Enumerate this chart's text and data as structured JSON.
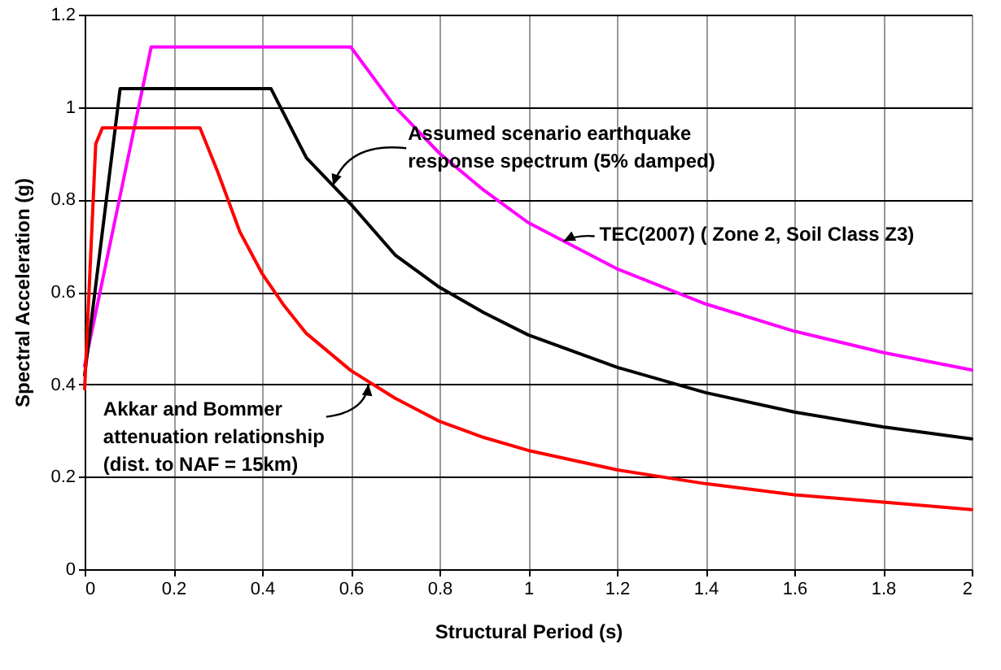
{
  "chart_data": {
    "type": "line",
    "xlabel": "Structural Period (s)",
    "ylabel": "Spectral Acceleration (g)",
    "xlim": [
      0,
      2
    ],
    "xticks": [
      0,
      0.2,
      0.4,
      0.6,
      0.8,
      1,
      1.2,
      1.4,
      1.6,
      1.8,
      2
    ],
    "ylim": [
      0,
      1.2
    ],
    "yticks": [
      0,
      0.2,
      0.4,
      0.6,
      0.8,
      1,
      1.2
    ],
    "grid": true,
    "marker": "none",
    "line_style": "solid",
    "series": [
      {
        "color": "#ff00ff",
        "x": [
          0,
          0.15,
          0.6,
          0.7,
          0.8,
          0.9,
          1.0,
          1.2,
          1.4,
          1.6,
          1.8,
          2.0
        ],
        "values": [
          0.44,
          1.13,
          1.13,
          1.0,
          0.9,
          0.82,
          0.75,
          0.65,
          0.574,
          0.515,
          0.469,
          0.431
        ]
      },
      {
        "color": "#000000",
        "x": [
          0,
          0.08,
          0.42,
          0.5,
          0.6,
          0.7,
          0.8,
          0.9,
          1.0,
          1.2,
          1.4,
          1.6,
          1.8,
          2.0
        ],
        "values": [
          0.42,
          1.04,
          1.04,
          0.89,
          0.79,
          0.68,
          0.61,
          0.555,
          0.507,
          0.437,
          0.382,
          0.34,
          0.308,
          0.282
        ]
      },
      {
        "color": "#ff0000",
        "x": [
          0,
          0.025,
          0.04,
          0.26,
          0.3,
          0.35,
          0.4,
          0.45,
          0.5,
          0.6,
          0.7,
          0.8,
          0.9,
          1.0,
          1.2,
          1.4,
          1.6,
          1.8,
          2.0
        ],
        "values": [
          0.39,
          0.92,
          0.955,
          0.955,
          0.86,
          0.73,
          0.64,
          0.57,
          0.51,
          0.43,
          0.37,
          0.32,
          0.285,
          0.257,
          0.215,
          0.185,
          0.161,
          0.145,
          0.129
        ]
      }
    ],
    "annotations": [
      {
        "text": "Assumed scenario earthquake\nresponse spectrum (5% damped)",
        "x": 0.56,
        "y": 0.83
      },
      {
        "text": "TEC(2007) ( Zone 2, Soil Class Z3)",
        "x": 1.08,
        "y": 0.71
      },
      {
        "text": "Akkar and Bommer\nattenuation relationship\n(dist. to NAF = 15km)",
        "x": 0.64,
        "y": 0.4
      }
    ]
  }
}
